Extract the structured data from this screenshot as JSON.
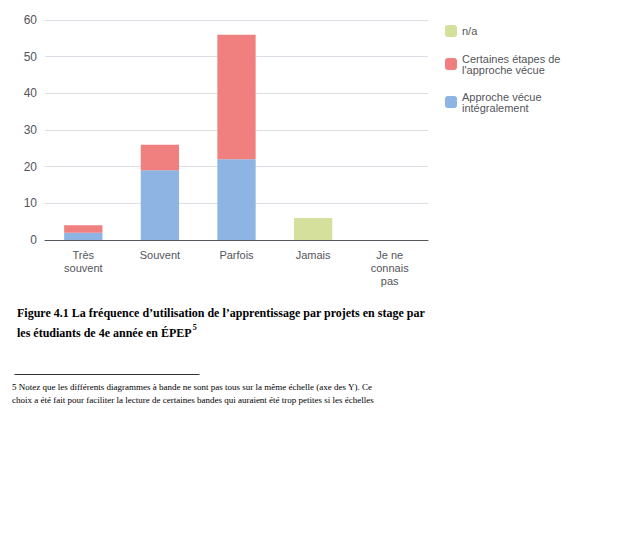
{
  "chart_data": {
    "type": "bar",
    "title": "Figure 4.1 La fréquence d’utilisation de l’apprentissage par projets en stage par\nles étudiants de 4e année en ÉPEP",
    "annotations": [
      "5",
      "5 Notez que les différents diagrammes à bande ne sont pas tous sur la même échelle (axe des Y). Ce\nchoix a été fait pour faciliter la lecture de certaines bandes qui auraient été trop petites si les échelles"
    ],
    "categories": [
      "Très\nsouvent",
      "Souvent",
      "Parfois",
      "Jamais",
      "Je ne\nconnais\npas"
    ],
    "series": [
      {
        "name": "Approche vécue\nintégralement",
        "color": "#8db4e2",
        "values": [
          2,
          19,
          22,
          0,
          0
        ]
      },
      {
        "name": "Certaines étapes de\nl'approche vécue",
        "color": "#f08080",
        "values": [
          2,
          7,
          34,
          0,
          0
        ]
      },
      {
        "name": "n/a",
        "color": "#d4e09b",
        "values": [
          0,
          0,
          0,
          6,
          0
        ]
      }
    ],
    "stacked": true,
    "ylim": [
      0,
      60
    ],
    "yticks": [
      0,
      10,
      20,
      30,
      40,
      50,
      60
    ],
    "grid": true,
    "legend": "right"
  }
}
